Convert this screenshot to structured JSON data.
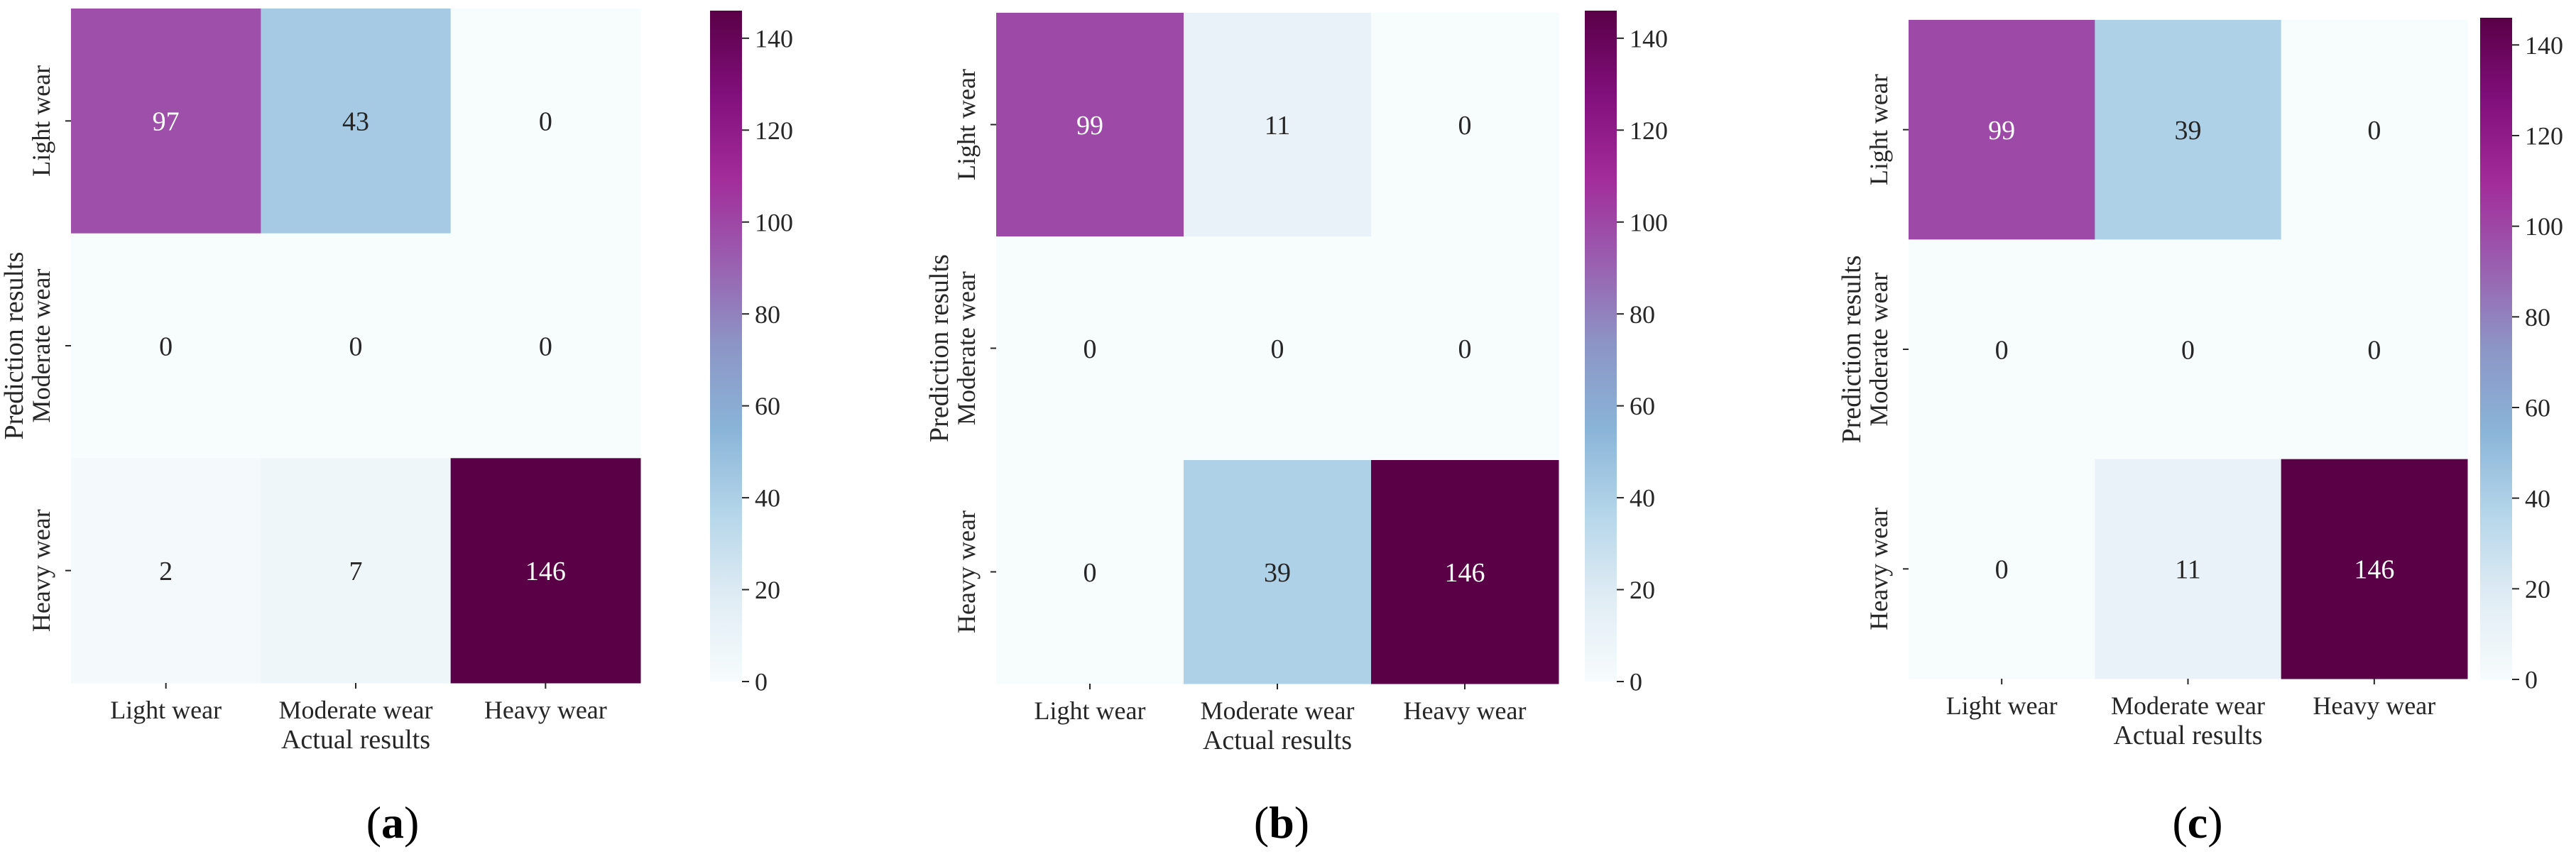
{
  "chart_data": [
    {
      "type": "heatmap",
      "subfigure_label": "(a)",
      "row_labels": [
        "Light wear",
        "Moderate wear",
        "Heavy wear"
      ],
      "col_labels": [
        "Light wear",
        "Moderate wear",
        "Heavy wear"
      ],
      "ylabel": "Prediction results",
      "xlabel": "Actual results",
      "values": [
        [
          97,
          43,
          0
        ],
        [
          0,
          0,
          0
        ],
        [
          2,
          7,
          146
        ]
      ],
      "colorbar": {
        "min": 0,
        "max": 146,
        "ticks": [
          0,
          20,
          40,
          60,
          80,
          100,
          120,
          140
        ]
      }
    },
    {
      "type": "heatmap",
      "subfigure_label": "(b)",
      "row_labels": [
        "Light wear",
        "Moderate wear",
        "Heavy wear"
      ],
      "col_labels": [
        "Light wear",
        "Moderate wear",
        "Heavy wear"
      ],
      "ylabel": "Prediction results",
      "xlabel": "Actual results",
      "values": [
        [
          99,
          11,
          0
        ],
        [
          0,
          0,
          0
        ],
        [
          0,
          39,
          146
        ]
      ],
      "colorbar": {
        "min": 0,
        "max": 146,
        "ticks": [
          0,
          20,
          40,
          60,
          80,
          100,
          120,
          140
        ]
      }
    },
    {
      "type": "heatmap",
      "subfigure_label": "(c)",
      "row_labels": [
        "Light wear",
        "Moderate wear",
        "Heavy wear"
      ],
      "col_labels": [
        "Light wear",
        "Moderate wear",
        "Heavy wear"
      ],
      "ylabel": "Prediction results",
      "xlabel": "Actual results",
      "values": [
        [
          99,
          39,
          0
        ],
        [
          0,
          0,
          0
        ],
        [
          0,
          11,
          146
        ]
      ],
      "colorbar": {
        "min": 0,
        "max": 146,
        "ticks": [
          0,
          20,
          40,
          60,
          80,
          100,
          120,
          140
        ]
      }
    }
  ],
  "colormap": {
    "name": "BuPu",
    "stops": [
      "#f7fcfd",
      "#e0ecf4",
      "#b5d6ea",
      "#8ab4d8",
      "#8c96c6",
      "#9a5fb0",
      "#a22c9a",
      "#810f7c",
      "#5a0047"
    ]
  },
  "text_colors": {
    "light": "#ffffff",
    "dark": "#262626"
  }
}
